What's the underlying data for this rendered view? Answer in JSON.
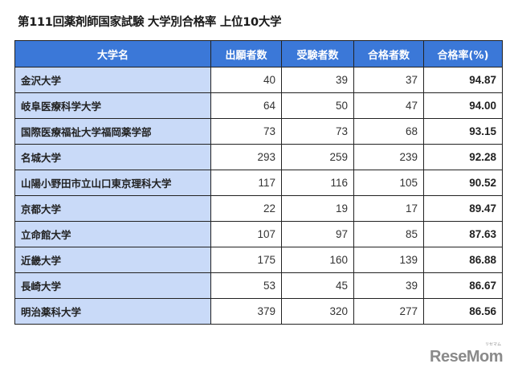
{
  "title": "第111回薬剤師国家試験 大学別合格率 上位10大学",
  "table": {
    "headers": [
      "大学名",
      "出願者数",
      "受験者数",
      "合格者数",
      "合格率(%)"
    ],
    "rows": [
      {
        "name": "金沢大学",
        "applicants": "40",
        "examinees": "39",
        "passed": "37",
        "rate": "94.87"
      },
      {
        "name": "岐阜医療科学大学",
        "applicants": "64",
        "examinees": "50",
        "passed": "47",
        "rate": "94.00"
      },
      {
        "name": "国際医療福祉大学福岡薬学部",
        "applicants": "73",
        "examinees": "73",
        "passed": "68",
        "rate": "93.15"
      },
      {
        "name": "名城大学",
        "applicants": "293",
        "examinees": "259",
        "passed": "239",
        "rate": "92.28"
      },
      {
        "name": "山陽小野田市立山口東京理科大学",
        "applicants": "117",
        "examinees": "116",
        "passed": "105",
        "rate": "90.52"
      },
      {
        "name": "京都大学",
        "applicants": "22",
        "examinees": "19",
        "passed": "17",
        "rate": "89.47"
      },
      {
        "name": "立命館大学",
        "applicants": "107",
        "examinees": "97",
        "passed": "85",
        "rate": "87.63"
      },
      {
        "name": "近畿大学",
        "applicants": "175",
        "examinees": "160",
        "passed": "139",
        "rate": "86.88"
      },
      {
        "name": "長崎大学",
        "applicants": "53",
        "examinees": "45",
        "passed": "39",
        "rate": "86.67"
      },
      {
        "name": "明治薬科大学",
        "applicants": "379",
        "examinees": "320",
        "passed": "277",
        "rate": "86.56"
      }
    ]
  },
  "logo": {
    "text": "ReseMom",
    "sub": "リセマム"
  },
  "colors": {
    "header_bg": "#3b78d8",
    "name_col_bg": "#c9daf8"
  }
}
